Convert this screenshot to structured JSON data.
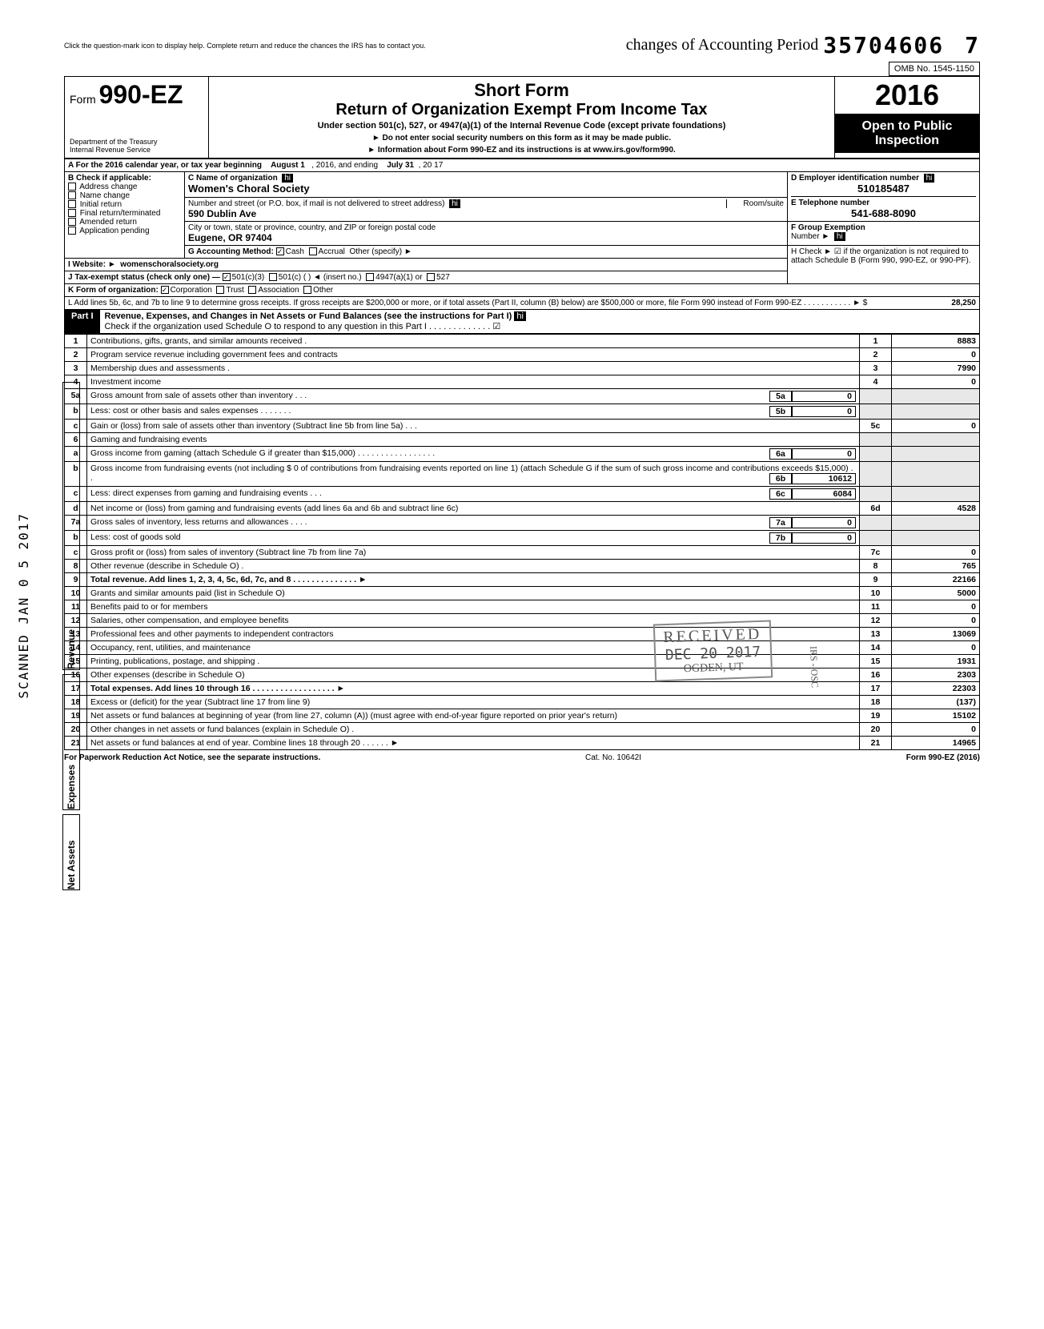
{
  "handwritten_top": "changes of Accounting Period",
  "top_instruction": "Click the question-mark icon to display help. Complete return and reduce the chances the IRS has to contact you.",
  "dln": "35704606",
  "dln_suffix": "7",
  "omb": "OMB No. 1545-1150",
  "form_prefix": "Form",
  "form_number": "990-EZ",
  "short_form": "Short Form",
  "title": "Return of Organization Exempt From Income Tax",
  "subtitle": "Under section 501(c), 527, or 4947(a)(1) of the Internal Revenue Code (except private foundations)",
  "warn1": "► Do not enter social security numbers on this form as it may be made public.",
  "warn2": "► Information about Form 990-EZ and its instructions is at www.irs.gov/form990.",
  "dept1": "Department of the Treasury",
  "dept2": "Internal Revenue Service",
  "year": "2016",
  "open1": "Open to Public",
  "open2": "Inspection",
  "lineA": "A  For the 2016 calendar year, or tax year beginning",
  "lineA_begin": "August 1",
  "lineA_mid": ", 2016, and ending",
  "lineA_end": "July 31",
  "lineA_yr": ", 20   17",
  "B_label": "B  Check if applicable:",
  "B_opts": [
    "Address change",
    "Name change",
    "Initial return",
    "Final return/terminated",
    "Amended return",
    "Application pending"
  ],
  "C_label": "C  Name of organization",
  "org_name": "Women's Choral Society",
  "addr_label": "Number and street (or P.O. box, if mail is not delivered to street address)",
  "room": "Room/suite",
  "street": "590 Dublin Ave",
  "city_label": "City or town, state or province, country, and ZIP or foreign postal code",
  "city": "Eugene, OR 97404",
  "D_label": "D Employer identification number",
  "ein": "510185487",
  "E_label": "E  Telephone number",
  "phone": "541-688-8090",
  "F_label": "F  Group Exemption",
  "F_label2": "Number  ►",
  "G_label": "G  Accounting Method:",
  "G_cash": "Cash",
  "G_accr": "Accrual",
  "G_other": "Other (specify) ►",
  "H_label": "H  Check ► ☑ if the organization is not required to attach Schedule B (Form 990, 990-EZ, or 990-PF).",
  "I_label": "I   Website: ►",
  "website": "womenschoralsociety.org",
  "J_label": "J  Tax-exempt status (check only one) —",
  "J_501c3": "501(c)(3)",
  "J_501c": "501(c) (          ) ◄ (insert no.)",
  "J_4947": "4947(a)(1) or",
  "J_527": "527",
  "K_label": "K  Form of organization:",
  "K_corp": "Corporation",
  "K_trust": "Trust",
  "K_assoc": "Association",
  "K_other": "Other",
  "L_text": "L  Add lines 5b, 6c, and 7b to line 9 to determine gross receipts. If gross receipts are $200,000 or more, or if total assets (Part II, column (B) below) are $500,000 or more, file Form 990 instead of Form 990-EZ .  .  .  .  .  .  .  .  .  .  .  ►  $",
  "L_amt": "28,250",
  "part1": "Part I",
  "part1_title": "Revenue, Expenses, and Changes in Net Assets or Fund Balances (see the instructions for Part I)",
  "part1_check": "Check if the organization used Schedule O to respond to any question in this Part I .  .  .  .  .  .  .  .  .  .  .  .  .  ☑",
  "rows": [
    {
      "n": "1",
      "t": "Contributions, gifts, grants, and similar amounts received .",
      "c": "1",
      "a": "8883"
    },
    {
      "n": "2",
      "t": "Program service revenue including government fees and contracts",
      "c": "2",
      "a": "0"
    },
    {
      "n": "3",
      "t": "Membership dues and assessments .",
      "c": "3",
      "a": "7990"
    },
    {
      "n": "4",
      "t": "Investment income",
      "c": "4",
      "a": "0"
    },
    {
      "n": "5a",
      "t": "Gross amount from sale of assets other than inventory  .  .  .",
      "ic": "5a",
      "iv": "0"
    },
    {
      "n": "b",
      "t": "Less: cost or other basis and sales expenses .  .  .  .  .  .  .",
      "ic": "5b",
      "iv": "0"
    },
    {
      "n": "c",
      "t": "Gain or (loss) from sale of assets other than inventory (Subtract line 5b from line 5a) .  .  .",
      "c": "5c",
      "a": "0"
    },
    {
      "n": "6",
      "t": "Gaming and fundraising events"
    },
    {
      "n": "a",
      "t": "Gross income from gaming (attach Schedule G if greater than $15,000) .  .  .  .  .  .  .  .  .  .  .  .  .  .  .  .  .",
      "ic": "6a",
      "iv": "0"
    },
    {
      "n": "b",
      "t": "Gross income from fundraising events (not including  $                 0 of contributions from fundraising events reported on line 1) (attach Schedule G if the sum of such gross income and contributions exceeds $15,000) .  .",
      "ic": "6b",
      "iv": "10612"
    },
    {
      "n": "c",
      "t": "Less: direct expenses from gaming and fundraising events  .  .  .",
      "ic": "6c",
      "iv": "6084"
    },
    {
      "n": "d",
      "t": "Net income or (loss) from gaming and fundraising events (add lines 6a and 6b and subtract line 6c)",
      "c": "6d",
      "a": "4528"
    },
    {
      "n": "7a",
      "t": "Gross sales of inventory, less returns and allowances  .  .  .  .",
      "ic": "7a",
      "iv": "0"
    },
    {
      "n": "b",
      "t": "Less: cost of goods sold",
      "ic": "7b",
      "iv": "0"
    },
    {
      "n": "c",
      "t": "Gross profit or (loss) from sales of inventory (Subtract line 7b from line 7a)",
      "c": "7c",
      "a": "0"
    },
    {
      "n": "8",
      "t": "Other revenue (describe in Schedule O) .",
      "c": "8",
      "a": "765"
    },
    {
      "n": "9",
      "t": "Total revenue. Add lines 1, 2, 3, 4, 5c, 6d, 7c, and 8  .  .  .  .  .  .  .  .  .  .  .  .  .  .  ►",
      "c": "9",
      "a": "22166",
      "bold": true
    },
    {
      "n": "10",
      "t": "Grants and similar amounts paid (list in Schedule O)",
      "c": "10",
      "a": "5000"
    },
    {
      "n": "11",
      "t": "Benefits paid to or for members",
      "c": "11",
      "a": "0"
    },
    {
      "n": "12",
      "t": "Salaries, other compensation, and employee benefits",
      "c": "12",
      "a": "0"
    },
    {
      "n": "13",
      "t": "Professional fees and other payments to independent contractors",
      "c": "13",
      "a": "13069"
    },
    {
      "n": "14",
      "t": "Occupancy, rent, utilities, and maintenance",
      "c": "14",
      "a": "0"
    },
    {
      "n": "15",
      "t": "Printing, publications, postage, and shipping .",
      "c": "15",
      "a": "1931"
    },
    {
      "n": "16",
      "t": "Other expenses (describe in Schedule O)",
      "c": "16",
      "a": "2303"
    },
    {
      "n": "17",
      "t": "Total expenses. Add lines 10 through 16  .  .  .  .  .  .  .  .  .  .  .  .  .  .  .  .  .  .  ►",
      "c": "17",
      "a": "22303",
      "bold": true
    },
    {
      "n": "18",
      "t": "Excess or (deficit) for the year (Subtract line 17 from line 9)",
      "c": "18",
      "a": "(137)"
    },
    {
      "n": "19",
      "t": "Net assets or fund balances at beginning of year (from line 27, column (A)) (must agree with end-of-year figure reported on prior year's return)",
      "c": "19",
      "a": "15102"
    },
    {
      "n": "20",
      "t": "Other changes in net assets or fund balances (explain in Schedule O) .",
      "c": "20",
      "a": "0"
    },
    {
      "n": "21",
      "t": "Net assets or fund balances at end of year. Combine lines 18 through 20  .  .  .  .  .  .  ►",
      "c": "21",
      "a": "14965"
    }
  ],
  "vside": {
    "rev": "Revenue",
    "exp": "Expenses",
    "na": "Net Assets"
  },
  "stamp_recv": "RECEIVED",
  "stamp_date": "DEC 20 2017",
  "stamp_office": "OGDEN, UT",
  "stamp_irs": "IRS - OSC",
  "scanned": "SCANNED JAN 0 5 2017",
  "paperwork": "For Paperwork Reduction Act Notice, see the separate instructions.",
  "catno": "Cat. No. 10642I",
  "formfoot": "Form 990-EZ (2016)"
}
